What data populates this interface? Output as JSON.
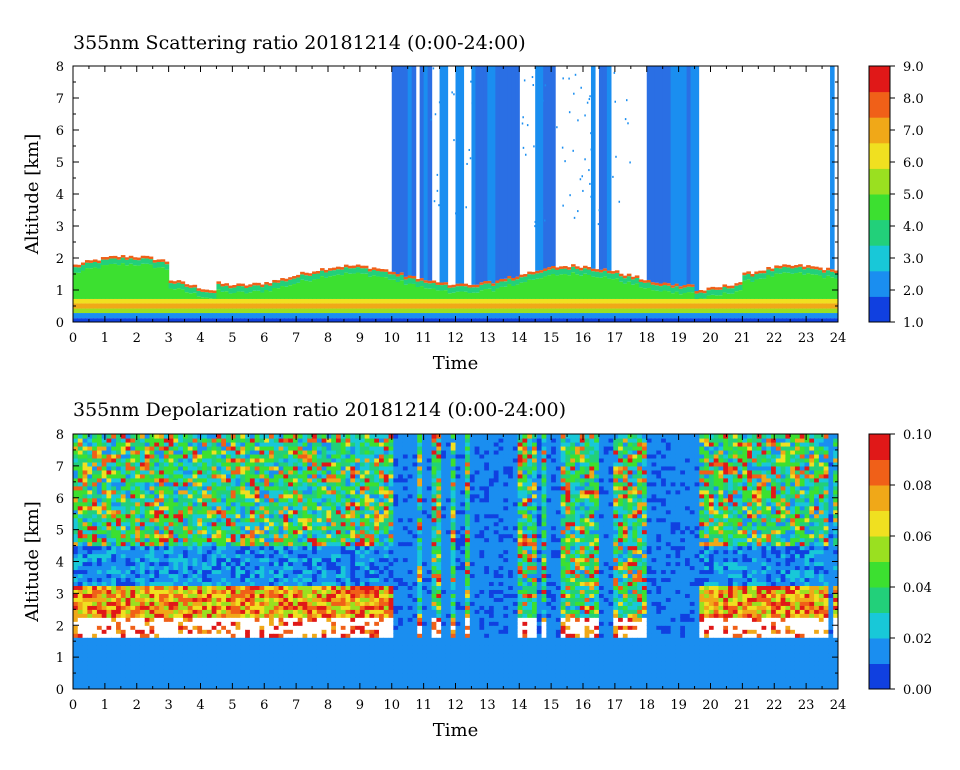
{
  "chart_data": [
    {
      "type": "heatmap",
      "title": "355nm Scattering ratio  20181214 (0:00-24:00)",
      "xlabel": "Time",
      "ylabel": "Altitude [km]",
      "xlim": [
        0,
        24
      ],
      "ylim": [
        0,
        8
      ],
      "x_ticks": [
        "0",
        "1",
        "2",
        "3",
        "4",
        "5",
        "6",
        "7",
        "8",
        "9",
        "10",
        "11",
        "12",
        "13",
        "14",
        "15",
        "16",
        "17",
        "18",
        "19",
        "20",
        "21",
        "22",
        "23",
        "24"
      ],
      "y_ticks": [
        "0",
        "1",
        "2",
        "3",
        "4",
        "5",
        "6",
        "7",
        "8"
      ],
      "colorbar": {
        "min": 1.0,
        "max": 9.0,
        "ticks": [
          "1.0",
          "2.0",
          "3.0",
          "4.0",
          "5.0",
          "6.0",
          "7.0",
          "8.0",
          "9.0"
        ],
        "colors": [
          "#1040e0",
          "#1a8ef0",
          "#18c8d8",
          "#22d07a",
          "#3ce030",
          "#9ae020",
          "#f0e020",
          "#f0a818",
          "#f06018",
          "#e01818"
        ]
      },
      "layers": {
        "surface_layer_km": [
          0,
          0.35
        ],
        "aerosol_layer_top_km": 1.75,
        "cloud_periods_h": [
          [
            10.0,
            10.8
          ],
          [
            10.9,
            11.2
          ],
          [
            11.5,
            11.8
          ],
          [
            12.0,
            12.3
          ],
          [
            12.5,
            13.0
          ],
          [
            13.0,
            13.6
          ],
          [
            13.6,
            14.0
          ],
          [
            14.5,
            14.7
          ],
          [
            14.8,
            15.1
          ],
          [
            15.2,
            15.3
          ],
          [
            16.3,
            16.4
          ],
          [
            16.5,
            16.6
          ],
          [
            16.6,
            16.9
          ],
          [
            17.2,
            17.3
          ],
          [
            18.0,
            19.6
          ],
          [
            23.7,
            23.9
          ]
        ]
      }
    },
    {
      "type": "heatmap",
      "title": "355nm Depolarization ratio  20181214 (0:00-24:00)",
      "xlabel": "Time",
      "ylabel": "Altitude [km]",
      "xlim": [
        0,
        24
      ],
      "ylim": [
        0,
        8
      ],
      "x_ticks": [
        "0",
        "1",
        "2",
        "3",
        "4",
        "5",
        "6",
        "7",
        "8",
        "9",
        "10",
        "11",
        "12",
        "13",
        "14",
        "15",
        "16",
        "17",
        "18",
        "19",
        "20",
        "21",
        "22",
        "23",
        "24"
      ],
      "y_ticks": [
        "0",
        "1",
        "2",
        "3",
        "4",
        "5",
        "6",
        "7",
        "8"
      ],
      "colorbar": {
        "min": 0.0,
        "max": 0.1,
        "ticks": [
          "0.00",
          "0.02",
          "0.04",
          "0.06",
          "0.08",
          "0.10"
        ],
        "colors": [
          "#1040e0",
          "#1a8ef0",
          "#18c8d8",
          "#22d07a",
          "#3ce030",
          "#9ae020",
          "#f0e020",
          "#f0a818",
          "#f06018",
          "#e01818"
        ]
      }
    }
  ]
}
